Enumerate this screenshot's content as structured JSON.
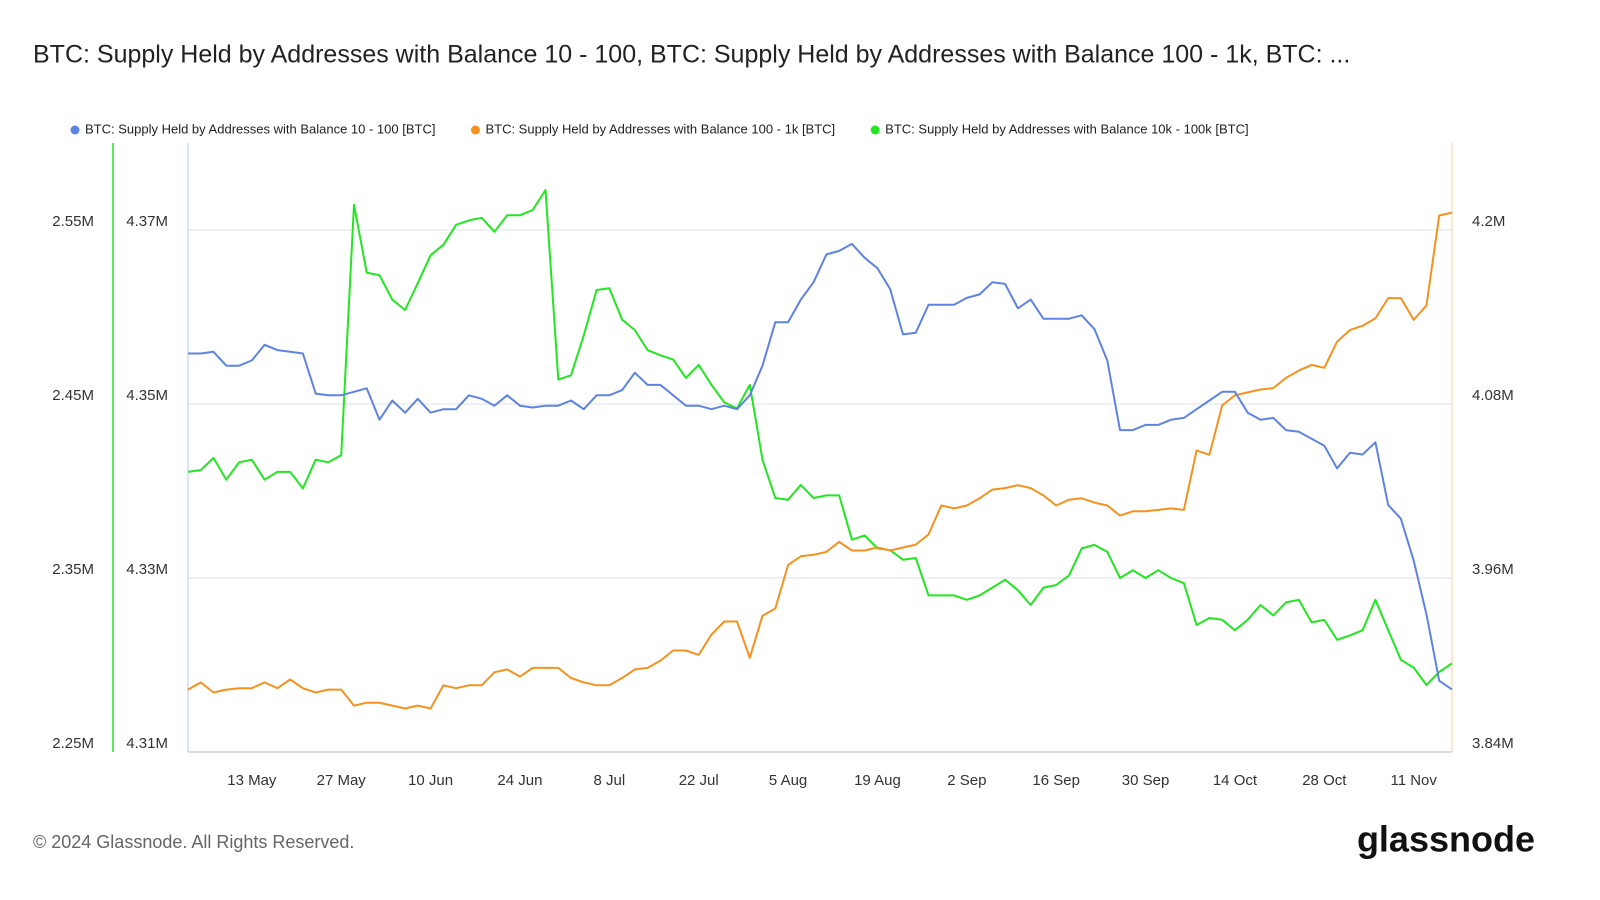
{
  "chart_data": {
    "type": "line",
    "title": "BTC: Supply Held by Addresses with Balance 10 - 100, BTC: Supply Held by Addresses with Balance 100 - 1k, BTC: ...",
    "x": [
      null,
      null,
      null,
      null,
      null,
      "13 May",
      null,
      null,
      null,
      null,
      null,
      null,
      "27 May",
      null,
      null,
      null,
      null,
      null,
      null,
      "10 Jun",
      null,
      null,
      null,
      null,
      null,
      null,
      "24 Jun",
      null,
      null,
      null,
      null,
      null,
      null,
      "8 Jul",
      null,
      null,
      null,
      null,
      null,
      null,
      "22 Jul",
      null,
      null,
      null,
      null,
      null,
      null,
      "5 Aug",
      null,
      null,
      null,
      null,
      null,
      null,
      "19 Aug",
      null,
      null,
      null,
      null,
      null,
      null,
      "2 Sep",
      null,
      null,
      null,
      null,
      null,
      null,
      "16 Sep",
      null,
      null,
      null,
      null,
      null,
      null,
      "30 Sep",
      null,
      null,
      null,
      null,
      null,
      null,
      "14 Oct",
      null,
      null,
      null,
      null,
      null,
      null,
      "28 Oct",
      null,
      null,
      null,
      null,
      null,
      null,
      "11 Nov",
      null,
      null,
      null
    ],
    "ylim": [
      2250000,
      2600000
    ],
    "yticks": [
      {
        "value": 2250000,
        "label": "2.25M"
      },
      {
        "value": 2350000,
        "label": "2.35M"
      },
      {
        "value": 2450000,
        "label": "2.45M"
      },
      {
        "value": 2550000,
        "label": "2.55M"
      }
    ],
    "y2lim": [
      3840000,
      4260000
    ],
    "y2ticks": [
      {
        "value": 3840000,
        "label": "3.84M"
      },
      {
        "value": 3960000,
        "label": "3.96M"
      },
      {
        "value": 4080000,
        "label": "4.08M"
      },
      {
        "value": 4200000,
        "label": "4.2M"
      }
    ],
    "y3lim": [
      4310000,
      4380000
    ],
    "y3ticks": [
      {
        "value": 4310000,
        "label": "4.31M"
      },
      {
        "value": 4330000,
        "label": "4.33M"
      },
      {
        "value": 4350000,
        "label": "4.35M"
      },
      {
        "value": 4370000,
        "label": "4.37M"
      }
    ],
    "grid": true,
    "legend": "top",
    "series": [
      {
        "name": "BTC: Supply Held by Addresses with Balance 10 - 100 [BTC]",
        "color": "#5f83e2",
        "axis": "y",
        "values": [
          2479000,
          2479000,
          2480000,
          2472000,
          2472000,
          2475000,
          2484000,
          2481000,
          2480000,
          2479000,
          2456000,
          2455000,
          2455000,
          2457000,
          2459000,
          2441000,
          2452000,
          2445000,
          2453000,
          2445000,
          2447000,
          2447000,
          2455000,
          2453000,
          2449000,
          2455000,
          2449000,
          2448000,
          2449000,
          2449000,
          2452000,
          2447000,
          2455000,
          2455000,
          2458000,
          2468000,
          2461000,
          2461000,
          2455000,
          2449000,
          2449000,
          2447000,
          2449000,
          2447000,
          2455000,
          2472000,
          2497000,
          2497000,
          2510000,
          2520000,
          2536000,
          2538000,
          2542000,
          2534000,
          2528000,
          2516000,
          2490000,
          2491000,
          2507000,
          2507000,
          2507000,
          2511000,
          2513000,
          2520000,
          2519000,
          2505000,
          2510000,
          2499000,
          2499000,
          2499000,
          2501000,
          2493000,
          2475000,
          2435000,
          2435000,
          2438000,
          2438000,
          2441000,
          2442000,
          2447000,
          2452000,
          2457000,
          2457000,
          2445000,
          2441000,
          2442000,
          2435000,
          2434000,
          2430000,
          2426000,
          2413000,
          2422000,
          2421000,
          2428000,
          2392000,
          2384000,
          2360000,
          2329000,
          2291000,
          2286000
        ]
      },
      {
        "name": "BTC: Supply Held by Addresses with Balance 100 - 1k [BTC]",
        "color": "#f5921e",
        "axis": "y2",
        "values": [
          3883000,
          3888000,
          3881000,
          3883000,
          3884000,
          3884000,
          3888000,
          3884000,
          3890000,
          3884000,
          3881000,
          3883000,
          3883000,
          3872000,
          3874000,
          3874000,
          3872000,
          3870000,
          3872000,
          3870000,
          3886000,
          3884000,
          3886000,
          3886000,
          3895000,
          3897000,
          3892000,
          3898000,
          3898000,
          3898000,
          3891000,
          3888000,
          3886000,
          3886000,
          3891000,
          3897000,
          3898000,
          3903000,
          3910000,
          3910000,
          3907000,
          3921000,
          3930000,
          3930000,
          3905000,
          3934000,
          3939000,
          3969000,
          3975000,
          3976000,
          3978000,
          3985000,
          3979000,
          3979000,
          3981000,
          3979000,
          3981000,
          3983000,
          3990000,
          4010000,
          4008000,
          4010000,
          4015000,
          4021000,
          4022000,
          4024000,
          4022000,
          4017000,
          4010000,
          4014000,
          4015000,
          4012000,
          4010000,
          4003000,
          4006000,
          4006000,
          4007000,
          4008000,
          4007000,
          4048000,
          4045000,
          4079000,
          4086000,
          4088000,
          4090000,
          4091000,
          4098000,
          4103000,
          4107000,
          4105000,
          4123000,
          4131000,
          4134000,
          4139000,
          4153000,
          4153000,
          4138000,
          4148000,
          4210000,
          4212000
        ]
      },
      {
        "name": "BTC: Supply Held by Addresses with Balance 10k - 100k [BTC]",
        "color": "#22e622",
        "axis": "y3",
        "values": [
          4342200,
          4342400,
          4343800,
          4341300,
          4343300,
          4343600,
          4341300,
          4342200,
          4342200,
          4340300,
          4343600,
          4343300,
          4344100,
          4372900,
          4365100,
          4364800,
          4362000,
          4360800,
          4363900,
          4367100,
          4368300,
          4370600,
          4371100,
          4371400,
          4369800,
          4371700,
          4371700,
          4372300,
          4374600,
          4352800,
          4353300,
          4357900,
          4363100,
          4363300,
          4359700,
          4358500,
          4356200,
          4355600,
          4355100,
          4353000,
          4354500,
          4352200,
          4350200,
          4349500,
          4352200,
          4343600,
          4339200,
          4339000,
          4340700,
          4339200,
          4339500,
          4339500,
          4334400,
          4334900,
          4333400,
          4333200,
          4332100,
          4332300,
          4328000,
          4328000,
          4328000,
          4327500,
          4328000,
          4328900,
          4329800,
          4328600,
          4326900,
          4328900,
          4329200,
          4330300,
          4333400,
          4333800,
          4333000,
          4330000,
          4330900,
          4330000,
          4330900,
          4330000,
          4329400,
          4324600,
          4325400,
          4325200,
          4324000,
          4325200,
          4326900,
          4325700,
          4327200,
          4327500,
          4324900,
          4325200,
          4322900,
          4323400,
          4324000,
          4327500,
          4324000,
          4320600,
          4319700,
          4317700,
          4319200,
          4320200
        ]
      }
    ]
  },
  "footer": {
    "copyright": "© 2024 Glassnode. All Rights Reserved.",
    "brand": "glassnode"
  }
}
